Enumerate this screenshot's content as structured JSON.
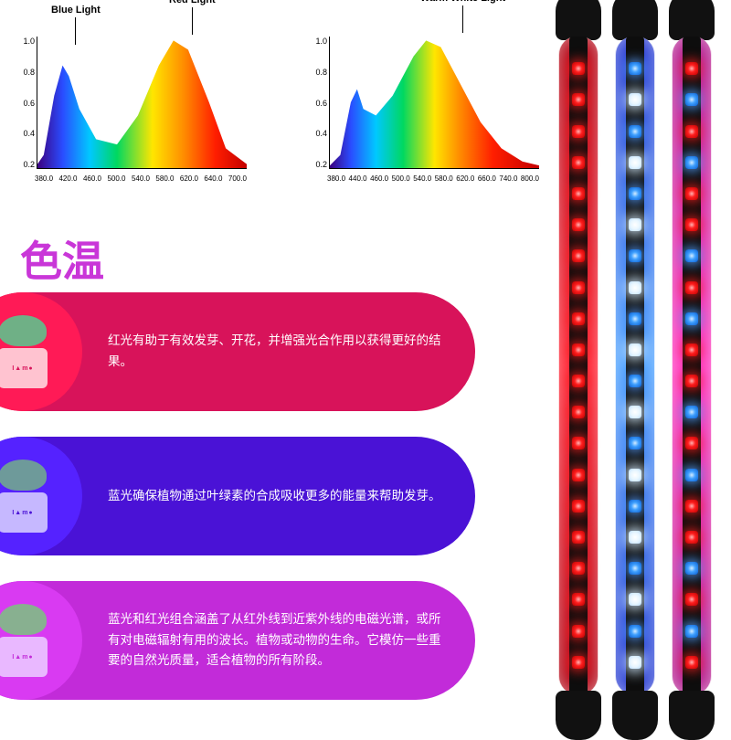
{
  "chart_left": {
    "type": "area",
    "title_blue": "Blue Light",
    "title_red": "Red Light",
    "y_ticks": [
      "1.0",
      "0.8",
      "0.6",
      "0.4",
      "0.2"
    ],
    "x_ticks": [
      "380.0",
      "420.0",
      "460.0",
      "500.0",
      "540.0",
      "580.0",
      "620.0",
      "640.0",
      "700.0"
    ],
    "y_lim": [
      0,
      1
    ],
    "stops": [
      {
        "x": 0.0,
        "c": "#3b0080"
      },
      {
        "x": 0.12,
        "c": "#2a4cff"
      },
      {
        "x": 0.25,
        "c": "#00c8ff"
      },
      {
        "x": 0.38,
        "c": "#00d860"
      },
      {
        "x": 0.55,
        "c": "#ffe600"
      },
      {
        "x": 0.7,
        "c": "#ff8c00"
      },
      {
        "x": 0.85,
        "c": "#ff1e00"
      },
      {
        "x": 1.0,
        "c": "#c40000"
      }
    ],
    "points": [
      [
        0,
        0.03
      ],
      [
        0.03,
        0.1
      ],
      [
        0.08,
        0.55
      ],
      [
        0.12,
        0.78
      ],
      [
        0.15,
        0.7
      ],
      [
        0.2,
        0.45
      ],
      [
        0.28,
        0.22
      ],
      [
        0.38,
        0.18
      ],
      [
        0.48,
        0.4
      ],
      [
        0.58,
        0.78
      ],
      [
        0.65,
        0.97
      ],
      [
        0.72,
        0.9
      ],
      [
        0.82,
        0.5
      ],
      [
        0.9,
        0.15
      ],
      [
        1.0,
        0.03
      ]
    ]
  },
  "chart_right": {
    "type": "area",
    "title": "Warm White Light",
    "y_ticks": [
      "1.0",
      "0.8",
      "0.6",
      "0.4",
      "0.2"
    ],
    "x_ticks": [
      "380.0",
      "440.0",
      "460.0",
      "500.0",
      "540.0",
      "580.0",
      "620.0",
      "660.0",
      "740.0",
      "800.0"
    ],
    "y_lim": [
      0,
      1
    ],
    "stops": [
      {
        "x": 0.0,
        "c": "#3b0080"
      },
      {
        "x": 0.1,
        "c": "#2a4cff"
      },
      {
        "x": 0.22,
        "c": "#00c8ff"
      },
      {
        "x": 0.35,
        "c": "#00d860"
      },
      {
        "x": 0.5,
        "c": "#ffe600"
      },
      {
        "x": 0.62,
        "c": "#ff8c00"
      },
      {
        "x": 0.78,
        "c": "#ff1e00"
      },
      {
        "x": 1.0,
        "c": "#c40000"
      }
    ],
    "points": [
      [
        0,
        0.02
      ],
      [
        0.05,
        0.1
      ],
      [
        0.1,
        0.5
      ],
      [
        0.13,
        0.6
      ],
      [
        0.16,
        0.45
      ],
      [
        0.22,
        0.4
      ],
      [
        0.3,
        0.55
      ],
      [
        0.4,
        0.85
      ],
      [
        0.46,
        0.97
      ],
      [
        0.53,
        0.92
      ],
      [
        0.62,
        0.65
      ],
      [
        0.72,
        0.35
      ],
      [
        0.82,
        0.15
      ],
      [
        0.92,
        0.05
      ],
      [
        1.0,
        0.02
      ]
    ]
  },
  "title": "色温",
  "rows": [
    {
      "bg": "#d8135a",
      "circle": "#ff1a56",
      "pot": "#ffc3d0",
      "leaves": "#6fb086",
      "label": "I▲m●",
      "text": "红光有助于有效发芽、开花，并增强光合作用以获得更好的结果。"
    },
    {
      "bg": "#4a12d6",
      "circle": "#5522ff",
      "pot": "#c6b8ff",
      "leaves": "#6e9a9a",
      "label": "I▲m●",
      "text": "蓝光确保植物通过叶绿素的合成吸收更多的能量来帮助发芽。"
    },
    {
      "bg": "#c22bd9",
      "circle": "#d93af2",
      "pot": "#e9b8ff",
      "leaves": "#88b090",
      "label": "I▲m●",
      "text": "蓝光和红光组合涵盖了从红外线到近紫外线的电磁光谱，或所有对电磁辐射有用的波长。植物或动物的生命。它模仿一些重要的自然光质量，适合植物的所有阶段。"
    }
  ],
  "tubes": [
    {
      "body_bg": "linear-gradient(180deg,#b00010,#ff2030,#b00010)",
      "leds": [
        "red",
        "red",
        "red",
        "red",
        "red",
        "red",
        "red",
        "red",
        "red",
        "red",
        "red",
        "red",
        "red",
        "red",
        "red",
        "red",
        "red",
        "red",
        "red",
        "red"
      ]
    },
    {
      "body_bg": "linear-gradient(180deg,#2234d0,#4aa0ff,#2234d0)",
      "leds": [
        "blue",
        "white",
        "blue",
        "white",
        "blue",
        "white",
        "blue",
        "white",
        "blue",
        "white",
        "blue",
        "white",
        "blue",
        "white",
        "blue",
        "white",
        "blue",
        "white",
        "blue",
        "white"
      ]
    },
    {
      "body_bg": "linear-gradient(180deg,#b0188c,#ff35c0,#b0188c)",
      "leds": [
        "red",
        "blue",
        "red",
        "blue",
        "red",
        "red",
        "blue",
        "red",
        "blue",
        "red",
        "red",
        "blue",
        "red",
        "blue",
        "red",
        "red",
        "blue",
        "red",
        "blue",
        "red"
      ]
    }
  ],
  "led_count": 20
}
